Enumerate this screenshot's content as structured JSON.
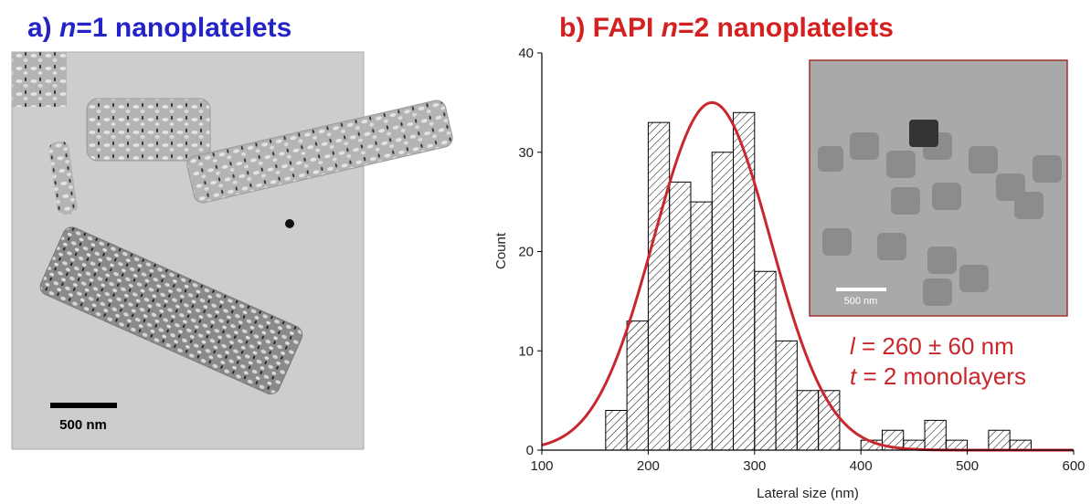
{
  "panel_a": {
    "title": [
      "a) ",
      "n",
      "=1 nanoplatelets"
    ],
    "scale_bar": "500 nm"
  },
  "chart_data": {
    "type": "histogram",
    "title": [
      "b) FAPI ",
      "n",
      "=2 nanoplatelets"
    ],
    "x_label": "Lateral size (nm)",
    "y_label": "Count",
    "bins": [
      160,
      180,
      200,
      220,
      240,
      260,
      280,
      300,
      320,
      340,
      360,
      380,
      400,
      420,
      440,
      460,
      480,
      500,
      520,
      540,
      560
    ],
    "counts": [
      4,
      13,
      33,
      27,
      25,
      30,
      34,
      18,
      11,
      6,
      6,
      0,
      1,
      2,
      1,
      3,
      1,
      0,
      2,
      1
    ],
    "xlim": [
      100,
      600
    ],
    "xticks": [
      100,
      200,
      300,
      400,
      500,
      600
    ],
    "ylim": [
      0,
      40
    ],
    "yticks": [
      0,
      10,
      20,
      30,
      40
    ],
    "fit": {
      "color": "#c8282d",
      "center": 260,
      "peak": 35,
      "width": 55
    },
    "inset": {
      "scale_bar": "500 nm"
    },
    "annotations": [
      [
        "l",
        " = 260 ± 60 nm"
      ],
      [
        "t",
        " = 2 monolayers"
      ]
    ]
  }
}
